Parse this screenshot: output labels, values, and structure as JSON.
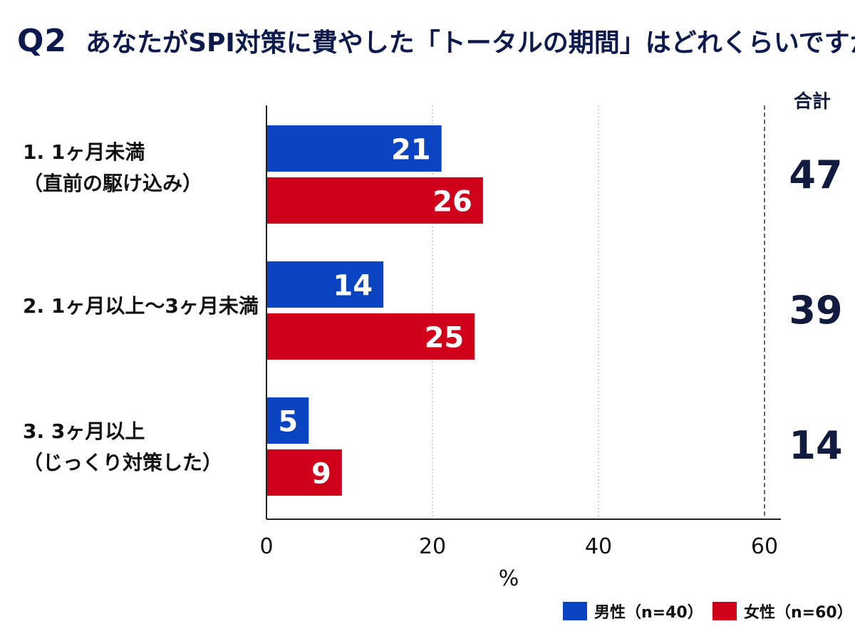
{
  "header": {
    "question_number": "Q2",
    "question_text": "あなたがSPI対策に費やした「トータルの期間」はどれくらいですか?"
  },
  "totals_header": "合計",
  "colors": {
    "male": "#0a44c2",
    "female": "#d0001b",
    "axis": "#222222",
    "grid": "#aaaaaa"
  },
  "chart_data": {
    "type": "bar",
    "orientation": "horizontal",
    "title": "あなたがSPI対策に費やした「トータルの期間」はどれくらいですか?",
    "categories": [
      {
        "line1": "1. 1ヶ月未満",
        "line2": "（直前の駆け込み）"
      },
      {
        "line1": "2. 1ヶ月以上〜3ヶ月未満",
        "line2": ""
      },
      {
        "line1": "3. 3ヶ月以上",
        "line2": "（じっくり対策した）"
      }
    ],
    "series": [
      {
        "name": "男性（n=40）",
        "values": [
          21,
          14,
          5
        ]
      },
      {
        "name": "女性（n=60）",
        "values": [
          26,
          25,
          9
        ]
      }
    ],
    "bar_labels": [
      [
        "21",
        "14",
        "5"
      ],
      [
        "26",
        "25",
        "9"
      ]
    ],
    "totals": [
      "47",
      "39",
      "14"
    ],
    "x_ticks": [
      "0",
      "20",
      "40",
      "60"
    ],
    "xlim": [
      0,
      60
    ],
    "xlabel": "%",
    "legend_position": "bottom-right",
    "grid": true
  }
}
